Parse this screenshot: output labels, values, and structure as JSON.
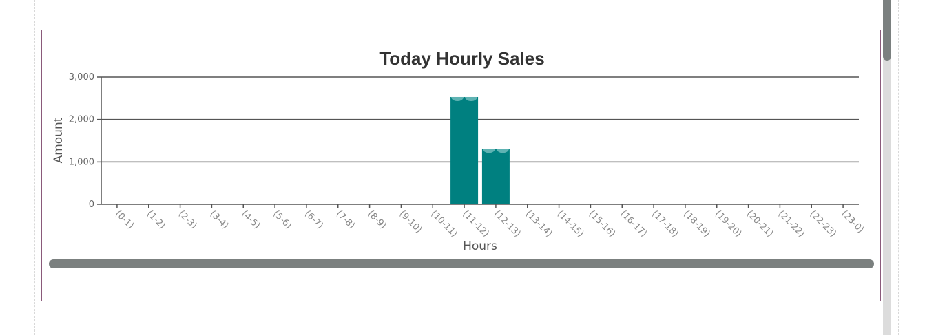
{
  "chart_data": {
    "type": "bar",
    "title": "Today Hourly Sales",
    "xlabel": "Hours",
    "ylabel": "Amount",
    "ylim": [
      0,
      3000
    ],
    "yticks": [
      "0",
      "1,000",
      "2,000",
      "3,000"
    ],
    "ytick_values": [
      0,
      1000,
      2000,
      3000
    ],
    "grid": true,
    "categories": [
      "(0-1)",
      "(1-2)",
      "(2-3)",
      "(3-4)",
      "(4-5)",
      "(5-6)",
      "(6-7)",
      "(7-8)",
      "(8-9)",
      "(9-10)",
      "(10-11)",
      "(11-12)",
      "(12-13)",
      "(13-14)",
      "(14-15)",
      "(15-16)",
      "(16-17)",
      "(17-18)",
      "(18-19)",
      "(19-20)",
      "(20-21)",
      "(21-22)",
      "(22-23)",
      "(23-0)"
    ],
    "values": [
      0,
      0,
      0,
      0,
      0,
      0,
      0,
      0,
      0,
      0,
      0,
      2530,
      1310,
      0,
      0,
      0,
      0,
      0,
      0,
      0,
      0,
      0,
      0,
      0
    ],
    "bar_color": "#008080",
    "gridline_color": "#555555"
  }
}
